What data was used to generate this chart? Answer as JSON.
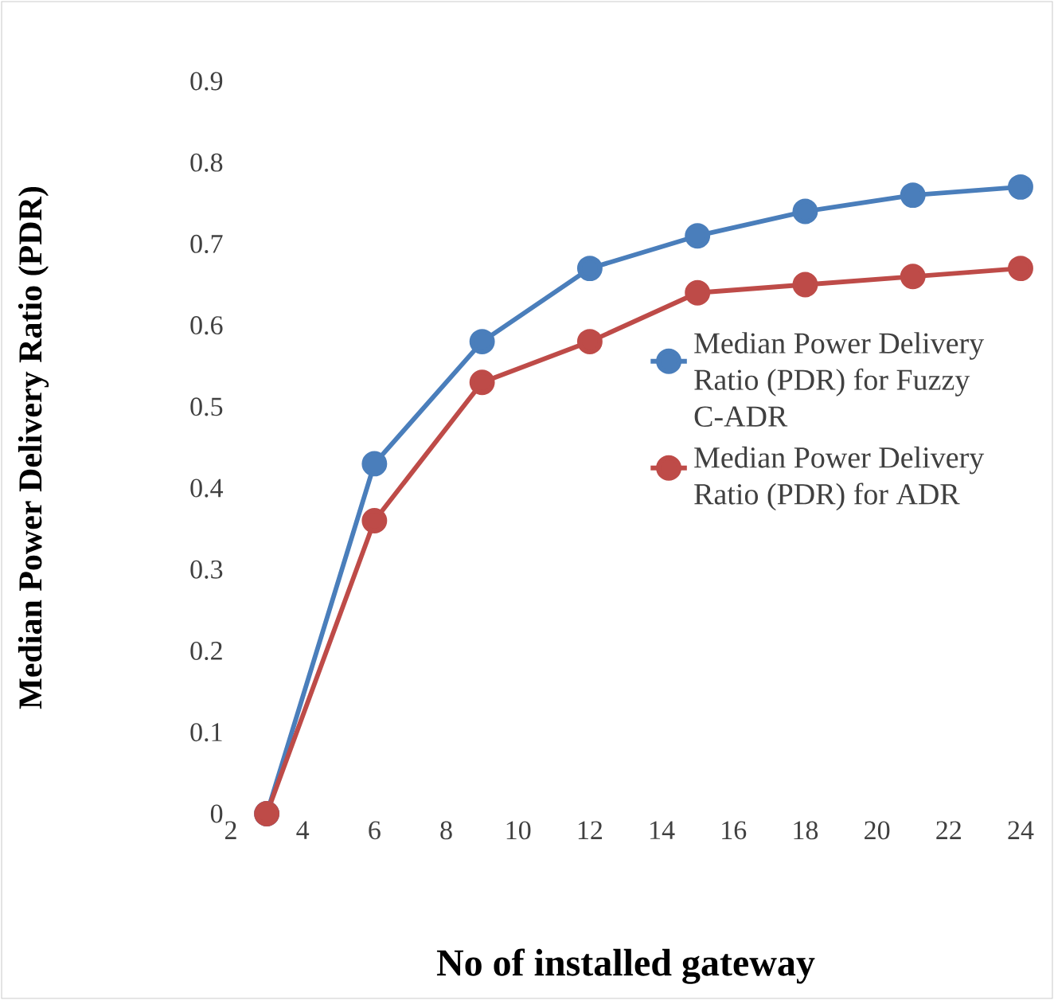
{
  "chart_data": {
    "type": "line",
    "xlabel": "No of installed gateway",
    "ylabel": "Median Power Delivery Ratio (PDR)",
    "x": [
      3,
      6,
      9,
      12,
      15,
      18,
      21,
      24
    ],
    "series": [
      {
        "name": "Median Power Delivery Ratio (PDR) for Fuzzy C-ADR",
        "color": "#4a7ebb",
        "values": [
          0,
          0.43,
          0.58,
          0.67,
          0.71,
          0.74,
          0.76,
          0.77
        ]
      },
      {
        "name": "Median Power Delivery Ratio (PDR) for ADR",
        "color": "#be4b48",
        "values": [
          0,
          0.36,
          0.53,
          0.58,
          0.64,
          0.65,
          0.66,
          0.67
        ]
      }
    ],
    "xlim": [
      2,
      24
    ],
    "xticks": [
      2,
      4,
      6,
      8,
      10,
      12,
      14,
      16,
      18,
      20,
      22,
      24
    ],
    "ylim": [
      0,
      0.9
    ],
    "yticks": [
      0,
      0.1,
      0.2,
      0.3,
      0.4,
      0.5,
      0.6,
      0.7,
      0.8,
      0.9
    ],
    "grid": false,
    "legend": "right",
    "marker": "circle",
    "line_style": "solid"
  }
}
